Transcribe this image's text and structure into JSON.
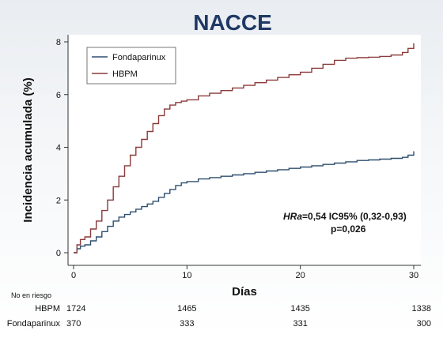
{
  "chart_data": {
    "type": "line",
    "title": "NACCE",
    "xlabel": "Días",
    "ylabel": "Incidencia acumulada (%)",
    "xlim": [
      0,
      30
    ],
    "ylim": [
      0,
      8
    ],
    "xticks": [
      0,
      10,
      20,
      30
    ],
    "yticks": [
      0,
      2,
      4,
      6,
      8
    ],
    "legend": {
      "placement": "top-left",
      "entries": [
        "Fondaparinux",
        "HBPM"
      ]
    },
    "series": [
      {
        "name": "Fondaparinux",
        "color": "#2e4e6e",
        "x": [
          0,
          0.3,
          0.6,
          1,
          1.5,
          2,
          2.5,
          3,
          3.5,
          4,
          4.5,
          5,
          5.5,
          6,
          6.5,
          7,
          7.5,
          8,
          8.5,
          9,
          9.5,
          10,
          11,
          12,
          13,
          14,
          15,
          16,
          17,
          18,
          19,
          20,
          21,
          22,
          23,
          24,
          25,
          26,
          27,
          28,
          29,
          29.5,
          30
        ],
        "y": [
          0,
          0.15,
          0.25,
          0.3,
          0.45,
          0.6,
          0.8,
          1.0,
          1.2,
          1.35,
          1.45,
          1.55,
          1.65,
          1.75,
          1.85,
          1.95,
          2.1,
          2.25,
          2.4,
          2.55,
          2.65,
          2.7,
          2.8,
          2.85,
          2.9,
          2.95,
          3.0,
          3.05,
          3.1,
          3.15,
          3.2,
          3.25,
          3.3,
          3.35,
          3.4,
          3.45,
          3.5,
          3.52,
          3.55,
          3.58,
          3.62,
          3.7,
          3.85
        ]
      },
      {
        "name": "HBPM",
        "color": "#8b3a3a",
        "x": [
          0,
          0.3,
          0.6,
          1,
          1.5,
          2,
          2.5,
          3,
          3.5,
          4,
          4.5,
          5,
          5.5,
          6,
          6.5,
          7,
          7.5,
          8,
          8.5,
          9,
          9.5,
          10,
          11,
          12,
          13,
          14,
          15,
          16,
          17,
          18,
          19,
          20,
          21,
          22,
          23,
          24,
          25,
          26,
          27,
          28,
          29,
          29.5,
          30
        ],
        "y": [
          0,
          0.3,
          0.5,
          0.6,
          0.9,
          1.2,
          1.6,
          2.0,
          2.5,
          2.9,
          3.3,
          3.7,
          4.0,
          4.3,
          4.6,
          4.9,
          5.2,
          5.45,
          5.6,
          5.7,
          5.75,
          5.8,
          5.95,
          6.05,
          6.15,
          6.25,
          6.35,
          6.45,
          6.55,
          6.65,
          6.75,
          6.85,
          7.0,
          7.15,
          7.3,
          7.38,
          7.4,
          7.42,
          7.45,
          7.5,
          7.6,
          7.75,
          7.95
        ]
      }
    ],
    "annotation": {
      "line1_italic": "HRa",
      "line1_rest": "=0,54 IC95% (0,32-0,93)",
      "line2": "p=0,026"
    },
    "risk_table": {
      "header": "No en riesgo",
      "rows": [
        {
          "label": "HBPM",
          "values": [
            "1724",
            "1465",
            "1435",
            "1338"
          ]
        },
        {
          "label": "Fondaparinux",
          "values": [
            "370",
            "333",
            "331",
            "300"
          ]
        }
      ]
    }
  }
}
